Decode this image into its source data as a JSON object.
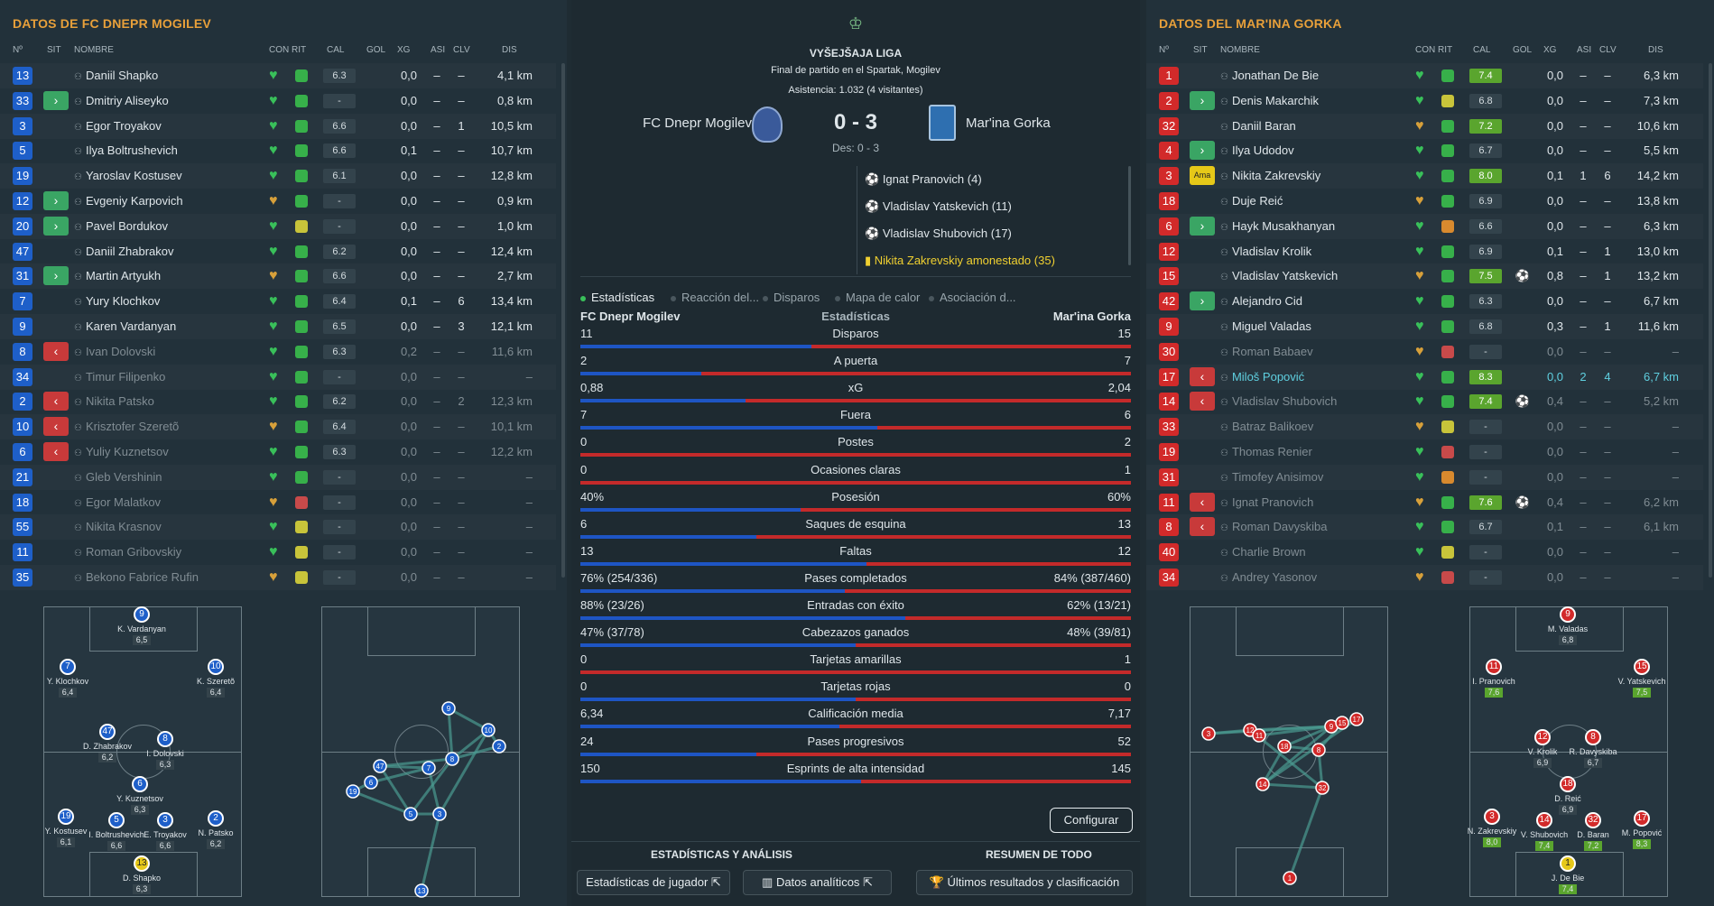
{
  "home": {
    "title": "DATOS DE FC DNEPR MOGILEV",
    "headers": [
      "Nº",
      "SIT",
      "NOMBRE",
      "CON",
      "RIT",
      "CAL",
      "GOL",
      "XG",
      "ASI",
      "CLV",
      "DIS"
    ],
    "rows": [
      {
        "n": "13",
        "sit": "",
        "name": "Daniil Shapko",
        "cal": "6.3",
        "gol": "",
        "xg": "0,0",
        "asi": "–",
        "clv": "–",
        "dis": "4,1 km",
        "rit": "g",
        "dim": false
      },
      {
        "n": "33",
        "sit": "in",
        "name": "Dmitriy Aliseyko",
        "cal": "-",
        "gol": "",
        "xg": "0,0",
        "asi": "–",
        "clv": "–",
        "dis": "0,8 km",
        "rit": "g",
        "dim": false
      },
      {
        "n": "3",
        "sit": "",
        "name": "Egor Troyakov",
        "cal": "6.6",
        "gol": "",
        "xg": "0,0",
        "asi": "–",
        "clv": "1",
        "dis": "10,5 km",
        "rit": "g",
        "dim": false
      },
      {
        "n": "5",
        "sit": "",
        "name": "Ilya Boltrushevich",
        "cal": "6.6",
        "gol": "",
        "xg": "0,1",
        "asi": "–",
        "clv": "–",
        "dis": "10,7 km",
        "rit": "g",
        "dim": false
      },
      {
        "n": "19",
        "sit": "",
        "name": "Yaroslav Kostusev",
        "cal": "6.1",
        "gol": "",
        "xg": "0,0",
        "asi": "–",
        "clv": "–",
        "dis": "12,8 km",
        "rit": "g",
        "dim": false
      },
      {
        "n": "12",
        "sit": "in",
        "name": "Evgeniy Karpovich",
        "cal": "-",
        "gol": "",
        "xg": "0,0",
        "asi": "–",
        "clv": "–",
        "dis": "0,9 km",
        "rit": "g",
        "dim": false
      },
      {
        "n": "20",
        "sit": "in",
        "name": "Pavel Bordukov",
        "cal": "-",
        "gol": "",
        "xg": "0,0",
        "asi": "–",
        "clv": "–",
        "dis": "1,0 km",
        "rit": "y",
        "dim": false
      },
      {
        "n": "47",
        "sit": "",
        "name": "Daniil Zhabrakov",
        "cal": "6.2",
        "gol": "",
        "xg": "0,0",
        "asi": "–",
        "clv": "–",
        "dis": "12,4 km",
        "rit": "g",
        "dim": false
      },
      {
        "n": "31",
        "sit": "in",
        "name": "Martin Artyukh",
        "cal": "6.6",
        "gol": "",
        "xg": "0,0",
        "asi": "–",
        "clv": "–",
        "dis": "2,7 km",
        "rit": "g",
        "dim": false
      },
      {
        "n": "7",
        "sit": "",
        "name": "Yury Klochkov",
        "cal": "6.4",
        "gol": "",
        "xg": "0,1",
        "asi": "–",
        "clv": "6",
        "dis": "13,4 km",
        "rit": "g",
        "dim": false
      },
      {
        "n": "9",
        "sit": "",
        "name": "Karen Vardanyan",
        "cal": "6.5",
        "gol": "",
        "xg": "0,0",
        "asi": "–",
        "clv": "3",
        "dis": "12,1 km",
        "rit": "g",
        "dim": false
      },
      {
        "n": "8",
        "sit": "out",
        "name": "Ivan Dolovski",
        "cal": "6.3",
        "gol": "",
        "xg": "0,2",
        "asi": "–",
        "clv": "–",
        "dis": "11,6 km",
        "rit": "g",
        "dim": true
      },
      {
        "n": "34",
        "sit": "",
        "name": "Timur Filipenko",
        "cal": "-",
        "gol": "",
        "xg": "0,0",
        "asi": "–",
        "clv": "–",
        "dis": "–",
        "rit": "g",
        "dim": true
      },
      {
        "n": "2",
        "sit": "out",
        "name": "Nikita Patsko",
        "cal": "6.2",
        "gol": "",
        "xg": "0,0",
        "asi": "–",
        "clv": "2",
        "dis": "12,3 km",
        "rit": "g",
        "dim": true
      },
      {
        "n": "10",
        "sit": "out",
        "name": "Krisztofer Szeretõ",
        "cal": "6.4",
        "gol": "",
        "xg": "0,0",
        "asi": "–",
        "clv": "–",
        "dis": "10,1 km",
        "rit": "g",
        "dim": true
      },
      {
        "n": "6",
        "sit": "out",
        "name": "Yuliy Kuznetsov",
        "cal": "6.3",
        "gol": "",
        "xg": "0,0",
        "asi": "–",
        "clv": "–",
        "dis": "12,2 km",
        "rit": "g",
        "dim": true
      },
      {
        "n": "21",
        "sit": "",
        "name": "Gleb Vershinin",
        "cal": "-",
        "gol": "",
        "xg": "0,0",
        "asi": "–",
        "clv": "–",
        "dis": "–",
        "rit": "g",
        "dim": true
      },
      {
        "n": "18",
        "sit": "",
        "name": "Egor Malatkov",
        "cal": "-",
        "gol": "",
        "xg": "0,0",
        "asi": "–",
        "clv": "–",
        "dis": "–",
        "rit": "r",
        "dim": true
      },
      {
        "n": "55",
        "sit": "",
        "name": "Nikita Krasnov",
        "cal": "-",
        "gol": "",
        "xg": "0,0",
        "asi": "–",
        "clv": "–",
        "dis": "–",
        "rit": "y",
        "dim": true
      },
      {
        "n": "11",
        "sit": "",
        "name": "Roman Gribovskiy",
        "cal": "-",
        "gol": "",
        "xg": "0,0",
        "asi": "–",
        "clv": "–",
        "dis": "–",
        "rit": "y",
        "dim": true
      },
      {
        "n": "35",
        "sit": "",
        "name": "Bekono Fabrice Rufin",
        "cal": "-",
        "gol": "",
        "xg": "0,0",
        "asi": "–",
        "clv": "–",
        "dis": "–",
        "rit": "y",
        "dim": true
      }
    ],
    "formation": [
      {
        "n": "9",
        "name": "K. Vardanyan",
        "rating": "6,5"
      },
      {
        "n": "7",
        "name": "Y. Klochkov",
        "rating": "6,4"
      },
      {
        "n": "10",
        "name": "K. Szeretõ",
        "rating": "6,4"
      },
      {
        "n": "47",
        "name": "D. Zhabrakov",
        "rating": "6,2"
      },
      {
        "n": "8",
        "name": "I. Dolovski",
        "rating": "6,3"
      },
      {
        "n": "6",
        "name": "Y. Kuznetsov",
        "rating": "6,3"
      },
      {
        "n": "19",
        "name": "Y. Kostusev",
        "rating": "6,1"
      },
      {
        "n": "5",
        "name": "I. Boltrushevich",
        "rating": "6,6"
      },
      {
        "n": "3",
        "name": "E. Troyakov",
        "rating": "6,6"
      },
      {
        "n": "2",
        "name": "N. Patsko",
        "rating": "6,2"
      },
      {
        "n": "13",
        "name": "D. Shapko",
        "rating": "6,3"
      }
    ],
    "network_nums": [
      "9",
      "10",
      "2",
      "8",
      "47",
      "7",
      "6",
      "19",
      "5",
      "3",
      "13"
    ]
  },
  "away": {
    "title": "DATOS DEL MAR'INA GORKA",
    "headers": [
      "Nº",
      "SIT",
      "NOMBRE",
      "CON",
      "RIT",
      "CAL",
      "GOL",
      "XG",
      "ASI",
      "CLV",
      "DIS"
    ],
    "rows": [
      {
        "n": "1",
        "sit": "",
        "name": "Jonathan De Bie",
        "cal": "7.4",
        "hi": true,
        "gol": "",
        "xg": "0,0",
        "asi": "–",
        "clv": "–",
        "dis": "6,3 km",
        "rit": "g",
        "dim": false
      },
      {
        "n": "2",
        "sit": "in",
        "name": "Denis Makarchik",
        "cal": "6.8",
        "gol": "",
        "xg": "0,0",
        "asi": "–",
        "clv": "–",
        "dis": "7,3 km",
        "rit": "y",
        "dim": false
      },
      {
        "n": "32",
        "sit": "",
        "name": "Daniil Baran",
        "cal": "7.2",
        "hi": true,
        "gol": "",
        "xg": "0,0",
        "asi": "–",
        "clv": "–",
        "dis": "10,6 km",
        "rit": "g",
        "dim": false
      },
      {
        "n": "4",
        "sit": "in",
        "name": "Ilya Udodov",
        "cal": "6.7",
        "gol": "",
        "xg": "0,0",
        "asi": "–",
        "clv": "–",
        "dis": "5,5 km",
        "rit": "g",
        "dim": false
      },
      {
        "n": "3",
        "sit": "ama",
        "name": "Nikita Zakrevskiy",
        "cal": "8.0",
        "hi": true,
        "gol": "",
        "xg": "0,1",
        "asi": "1",
        "clv": "6",
        "dis": "14,2 km",
        "rit": "g",
        "dim": false
      },
      {
        "n": "18",
        "sit": "",
        "name": "Duje Reić",
        "cal": "6.9",
        "gol": "",
        "xg": "0,0",
        "asi": "–",
        "clv": "–",
        "dis": "13,8 km",
        "rit": "g",
        "dim": false
      },
      {
        "n": "6",
        "sit": "in",
        "name": "Hayk Musakhanyan",
        "cal": "6.6",
        "gol": "",
        "xg": "0,0",
        "asi": "–",
        "clv": "–",
        "dis": "6,3 km",
        "rit": "o",
        "dim": false
      },
      {
        "n": "12",
        "sit": "",
        "name": "Vladislav Krolik",
        "cal": "6.9",
        "gol": "",
        "xg": "0,1",
        "asi": "–",
        "clv": "1",
        "dis": "13,0 km",
        "rit": "g",
        "dim": false
      },
      {
        "n": "15",
        "sit": "",
        "name": "Vladislav Yatskevich",
        "cal": "7.5",
        "hi": true,
        "gol": "⚽",
        "xg": "0,8",
        "asi": "–",
        "clv": "1",
        "dis": "13,2 km",
        "rit": "g",
        "dim": false
      },
      {
        "n": "42",
        "sit": "in",
        "name": "Alejandro Cid",
        "cal": "6.3",
        "gol": "",
        "xg": "0,0",
        "asi": "–",
        "clv": "–",
        "dis": "6,7 km",
        "rit": "g",
        "dim": false
      },
      {
        "n": "9",
        "sit": "",
        "name": "Miguel Valadas",
        "cal": "6.8",
        "gol": "",
        "xg": "0,3",
        "asi": "–",
        "clv": "1",
        "dis": "11,6 km",
        "rit": "g",
        "dim": false
      },
      {
        "n": "30",
        "sit": "",
        "name": "Roman Babaev",
        "cal": "-",
        "gol": "",
        "xg": "0,0",
        "asi": "–",
        "clv": "–",
        "dis": "–",
        "rit": "r",
        "dim": true
      },
      {
        "n": "17",
        "sit": "out",
        "name": "Miloš Popović",
        "cal": "8.3",
        "hi": true,
        "gol": "",
        "xg": "0,0",
        "asi": "2",
        "clv": "4",
        "dis": "6,7 km",
        "rit": "g",
        "dim": false,
        "teal": true
      },
      {
        "n": "14",
        "sit": "out",
        "name": "Vladislav Shubovich",
        "cal": "7.4",
        "hi": true,
        "gol": "⚽",
        "xg": "0,4",
        "asi": "–",
        "clv": "–",
        "dis": "5,2 km",
        "rit": "g",
        "dim": true
      },
      {
        "n": "33",
        "sit": "",
        "name": "Batraz Balikoev",
        "cal": "-",
        "gol": "",
        "xg": "0,0",
        "asi": "–",
        "clv": "–",
        "dis": "–",
        "rit": "y",
        "dim": true
      },
      {
        "n": "19",
        "sit": "",
        "name": "Thomas Renier",
        "cal": "-",
        "gol": "",
        "xg": "0,0",
        "asi": "–",
        "clv": "–",
        "dis": "–",
        "rit": "r",
        "dim": true
      },
      {
        "n": "31",
        "sit": "",
        "name": "Timofey Anisimov",
        "cal": "-",
        "gol": "",
        "xg": "0,0",
        "asi": "–",
        "clv": "–",
        "dis": "–",
        "rit": "o",
        "dim": true
      },
      {
        "n": "11",
        "sit": "out",
        "name": "Ignat Pranovich",
        "cal": "7.6",
        "hi": true,
        "gol": "⚽",
        "xg": "0,4",
        "asi": "–",
        "clv": "–",
        "dis": "6,2 km",
        "rit": "g",
        "dim": true
      },
      {
        "n": "8",
        "sit": "out",
        "name": "Roman Davyskiba",
        "cal": "6.7",
        "gol": "",
        "xg": "0,1",
        "asi": "–",
        "clv": "–",
        "dis": "6,1 km",
        "rit": "g",
        "dim": true
      },
      {
        "n": "40",
        "sit": "",
        "name": "Charlie Brown",
        "cal": "-",
        "gol": "",
        "xg": "0,0",
        "asi": "–",
        "clv": "–",
        "dis": "–",
        "rit": "y",
        "dim": true
      },
      {
        "n": "34",
        "sit": "",
        "name": "Andrey Yasonov",
        "cal": "-",
        "gol": "",
        "xg": "0,0",
        "asi": "–",
        "clv": "–",
        "dis": "–",
        "rit": "r",
        "dim": true
      }
    ],
    "formation": [
      {
        "n": "9",
        "name": "M. Valadas",
        "rating": "6,8"
      },
      {
        "n": "11",
        "name": "I. Pranovich",
        "rating": "7,6"
      },
      {
        "n": "15",
        "name": "V. Yatskevich",
        "rating": "7,5"
      },
      {
        "n": "12",
        "name": "V. Krolik",
        "rating": "6,9"
      },
      {
        "n": "8",
        "name": "R. Davyskiba",
        "rating": "6,7"
      },
      {
        "n": "18",
        "name": "D. Reić",
        "rating": "6,9"
      },
      {
        "n": "3",
        "name": "N. Zakrevskiy",
        "rating": "8,0"
      },
      {
        "n": "14",
        "name": "V. Shubovich",
        "rating": "7,4"
      },
      {
        "n": "32",
        "name": "D. Baran",
        "rating": "7,2"
      },
      {
        "n": "17",
        "name": "M. Popović",
        "rating": "8,3"
      },
      {
        "n": "1",
        "name": "J. De Bie",
        "rating": "7,4"
      }
    ],
    "network_nums": [
      "3",
      "12",
      "11",
      "9",
      "18",
      "8",
      "15",
      "17",
      "14",
      "32",
      "1"
    ]
  },
  "match": {
    "competition": "VYŠEJŠAJA LIGA",
    "venue": "Final de partido en el Spartak, Mogilev",
    "attendance": "Asistencia: 1.032 (4 visitantes)",
    "home_team": "FC Dnepr Mogilev",
    "away_team": "Mar'ina Gorka",
    "score": "0 - 3",
    "halftime": "Des: 0 - 3",
    "events": [
      {
        "icon": "goal-icon",
        "text": "Ignat Pranovich (4)"
      },
      {
        "icon": "goal-icon",
        "text": "Vladislav Yatskevich (11)"
      },
      {
        "icon": "goal-icon",
        "text": "Vladislav Shubovich (17)"
      },
      {
        "icon": "yellow-card-icon",
        "text": "Nikita Zakrevskiy amonestado (35)"
      }
    ],
    "tabs": [
      "Estadísticas",
      "Reacción del...",
      "Disparos",
      "Mapa de calor",
      "Asociación d..."
    ],
    "stats_header": {
      "home": "FC Dnepr Mogilev",
      "center": "Estadísticas",
      "away": "Mar'ina Gorka"
    },
    "stats": [
      {
        "name": "Disparos",
        "home": "11",
        "away": "15",
        "share": 0.42
      },
      {
        "name": "A puerta",
        "home": "2",
        "away": "7",
        "share": 0.22
      },
      {
        "name": "xG",
        "home": "0,88",
        "away": "2,04",
        "share": 0.3
      },
      {
        "name": "Fuera",
        "home": "7",
        "away": "6",
        "share": 0.54
      },
      {
        "name": "Postes",
        "home": "0",
        "away": "2",
        "share": 0
      },
      {
        "name": "Ocasiones claras",
        "home": "0",
        "away": "1",
        "share": 0
      },
      {
        "name": "Posesión",
        "home": "40%",
        "away": "60%",
        "share": 0.4
      },
      {
        "name": "Saques de esquina",
        "home": "6",
        "away": "13",
        "share": 0.32
      },
      {
        "name": "Faltas",
        "home": "13",
        "away": "12",
        "share": 0.52
      },
      {
        "name": "Pases completados",
        "home": "76% (254/336)",
        "away": "84% (387/460)",
        "share": 0.48
      },
      {
        "name": "Entradas con éxito",
        "home": "88% (23/26)",
        "away": "62% (13/21)",
        "share": 0.59
      },
      {
        "name": "Cabezazos ganados",
        "home": "47% (37/78)",
        "away": "48% (39/81)",
        "share": 0.5
      },
      {
        "name": "Tarjetas amarillas",
        "home": "0",
        "away": "1",
        "share": 0
      },
      {
        "name": "Tarjetas rojas",
        "home": "0",
        "away": "0",
        "share": 0.5
      },
      {
        "name": "Calificación media",
        "home": "6,34",
        "away": "7,17",
        "share": 0.47
      },
      {
        "name": "Pases progresivos",
        "home": "24",
        "away": "52",
        "share": 0.32
      },
      {
        "name": "Esprints de alta intensidad",
        "home": "150",
        "away": "145",
        "share": 0.51
      }
    ],
    "configure": "Configurar",
    "section_left": "ESTADÍSTICAS Y ANÁLISIS",
    "section_right": "RESUMEN DE TODO",
    "buttons": [
      "Estadísticas de jugador",
      "Datos analíticos",
      "Últimos resultados y clasificación"
    ]
  }
}
